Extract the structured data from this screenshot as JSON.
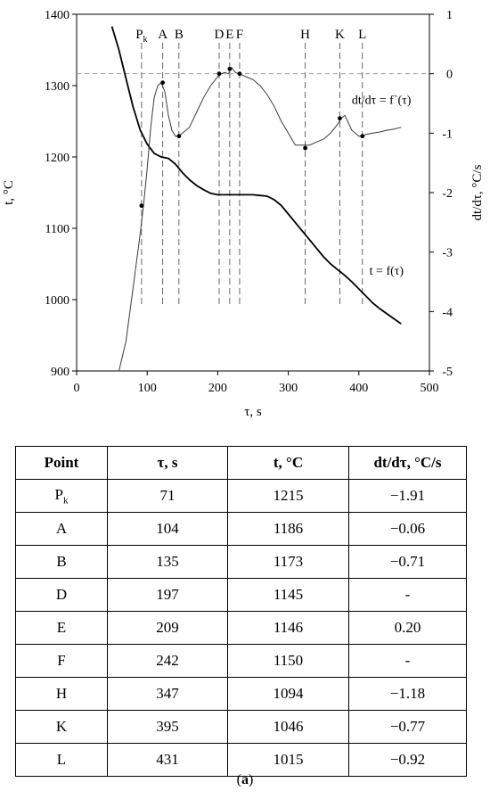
{
  "chart_data": {
    "type": "line",
    "xlabel": "τ, s",
    "ylabel": "t, °C",
    "y2label": "dt/dτ, °C/s",
    "xlim": [
      0,
      500
    ],
    "ylim": [
      900,
      1400
    ],
    "y2lim": [
      -5,
      1
    ],
    "x_ticks": [
      0,
      100,
      200,
      300,
      400,
      500
    ],
    "y_ticks": [
      900,
      1000,
      1100,
      1200,
      1300,
      1400
    ],
    "y2_ticks": [
      -5,
      -4,
      -3,
      -2,
      -1,
      0,
      1
    ],
    "grid": false,
    "series": [
      {
        "name": "t = f(τ)",
        "axis": "left",
        "x": [
          50,
          60,
          70,
          80,
          90,
          100,
          110,
          120,
          130,
          140,
          150,
          160,
          170,
          180,
          190,
          200,
          210,
          220,
          230,
          240,
          250,
          260,
          270,
          280,
          290,
          300,
          310,
          320,
          330,
          340,
          350,
          360,
          370,
          380,
          390,
          400,
          410,
          420,
          430,
          440,
          450,
          460
        ],
        "y": [
          1383,
          1350,
          1310,
          1270,
          1238,
          1218,
          1205,
          1200,
          1198,
          1190,
          1178,
          1168,
          1160,
          1154,
          1149,
          1147,
          1147,
          1147,
          1147,
          1147,
          1147,
          1146,
          1145,
          1140,
          1132,
          1120,
          1108,
          1096,
          1084,
          1072,
          1060,
          1050,
          1042,
          1034,
          1025,
          1015,
          1005,
          995,
          987,
          980,
          973,
          966
        ]
      },
      {
        "name": "dt/dτ = f`(τ)",
        "axis": "right",
        "x": [
          60,
          70,
          80,
          90,
          95,
          100,
          105,
          110,
          115,
          120,
          125,
          130,
          135,
          140,
          145,
          150,
          160,
          170,
          180,
          190,
          200,
          205,
          210,
          215,
          220,
          225,
          230,
          240,
          250,
          260,
          270,
          280,
          290,
          300,
          310,
          320,
          330,
          340,
          350,
          360,
          370,
          375,
          380,
          390,
          400,
          405,
          410,
          420,
          430,
          440,
          450,
          460
        ],
        "y": [
          -5.0,
          -4.5,
          -3.6,
          -2.7,
          -2.2,
          -1.6,
          -0.9,
          -0.4,
          -0.2,
          -0.15,
          -0.3,
          -0.7,
          -0.95,
          -1.05,
          -1.05,
          -1.0,
          -0.9,
          -0.65,
          -0.4,
          -0.2,
          -0.05,
          0.0,
          0.02,
          0.0,
          0.1,
          0.02,
          0.0,
          -0.05,
          -0.1,
          -0.2,
          -0.35,
          -0.55,
          -0.8,
          -1.0,
          -1.2,
          -1.2,
          -1.2,
          -1.15,
          -1.1,
          -1.0,
          -0.85,
          -0.75,
          -0.7,
          -0.95,
          -1.05,
          -1.05,
          -1.02,
          -1.0,
          -0.98,
          -0.95,
          -0.93,
          -0.9
        ]
      }
    ],
    "derivative_markers": [
      {
        "x": 92,
        "y": -2.22
      },
      {
        "x": 122,
        "y": -0.15
      },
      {
        "x": 145,
        "y": -1.05
      },
      {
        "x": 202,
        "y": 0.0
      },
      {
        "x": 217,
        "y": 0.08
      },
      {
        "x": 231,
        "y": 0.0
      },
      {
        "x": 324,
        "y": -1.25
      },
      {
        "x": 373,
        "y": -0.75
      },
      {
        "x": 405,
        "y": -1.05
      }
    ],
    "vlines": [
      {
        "label": "P",
        "sub": "k",
        "x": 92
      },
      {
        "label": "A",
        "x": 122
      },
      {
        "label": "B",
        "x": 145
      },
      {
        "label": "D",
        "x": 202
      },
      {
        "label": "E",
        "x": 217
      },
      {
        "label": "F",
        "x": 231
      },
      {
        "label": "H",
        "x": 324
      },
      {
        "label": "K",
        "x": 373
      },
      {
        "label": "L",
        "x": 405
      }
    ],
    "zero_line_y2": 0,
    "annotations": [
      {
        "text": "dt/dτ = f`(τ)",
        "x": 390,
        "y2": -0.45
      },
      {
        "text": "t = f(τ)",
        "x": 415,
        "y": 1040
      }
    ]
  },
  "table": {
    "headers": [
      "Point",
      "τ, s",
      "t, °C",
      "dt/dτ, °C/s"
    ],
    "rows": [
      [
        "P",
        "71",
        "1215",
        "−1.91"
      ],
      [
        "A",
        "104",
        "1186",
        "−0.06"
      ],
      [
        "B",
        "135",
        "1173",
        "−0.71"
      ],
      [
        "D",
        "197",
        "1145",
        "-"
      ],
      [
        "E",
        "209",
        "1146",
        "0.20"
      ],
      [
        "F",
        "242",
        "1150",
        "-"
      ],
      [
        "H",
        "347",
        "1094",
        "−1.18"
      ],
      [
        "K",
        "395",
        "1046",
        "−0.77"
      ],
      [
        "L",
        "431",
        "1015",
        "−0.92"
      ]
    ],
    "first_row_sub": "k"
  },
  "caption": {
    "open": "(",
    "letter": "a",
    "close": ")"
  }
}
